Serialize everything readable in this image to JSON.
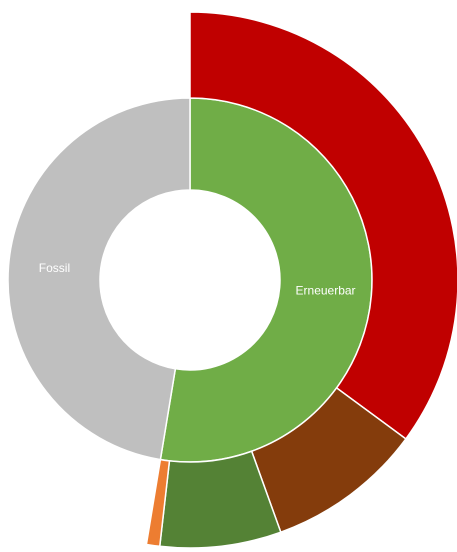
{
  "chart_data": {
    "type": "sunburst",
    "rings": [
      {
        "labels": [
          "Erneuerbar",
          "Fossil"
        ],
        "values": [
          52.6,
          47.4
        ],
        "colors": [
          "#70ad47",
          "#bfbfbf"
        ]
      },
      {
        "values": [
          35.1,
          9.4,
          7.3,
          0.8
        ],
        "colors": [
          "#c00000",
          "#843c0c",
          "#548235",
          "#ed7d31"
        ]
      }
    ]
  }
}
